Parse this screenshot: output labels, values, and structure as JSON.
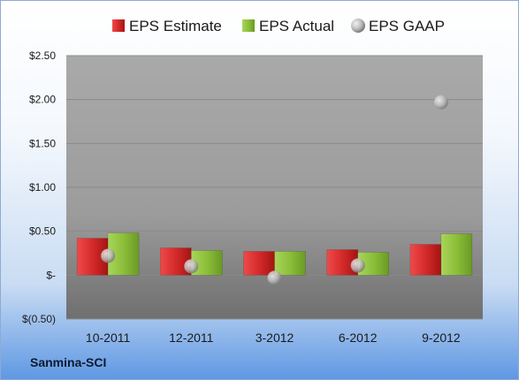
{
  "company_label": "Sanmina-SCI",
  "colors": {
    "estimate": "#d42a2a",
    "actual": "#8cbf3a",
    "gaap": "#b8b8b8"
  },
  "chart_data": {
    "type": "bar",
    "categories": [
      "10-2011",
      "12-2011",
      "3-2012",
      "6-2012",
      "9-2012"
    ],
    "series": [
      {
        "name": "EPS Estimate",
        "kind": "bar",
        "values": [
          0.42,
          0.31,
          0.27,
          0.29,
          0.35
        ]
      },
      {
        "name": "EPS Actual",
        "kind": "bar",
        "values": [
          0.48,
          0.28,
          0.27,
          0.26,
          0.47
        ]
      },
      {
        "name": "EPS GAAP",
        "kind": "marker",
        "values": [
          0.22,
          0.1,
          -0.03,
          0.11,
          1.97
        ]
      }
    ],
    "ylim": [
      -0.5,
      2.5
    ],
    "yticks": [
      -0.5,
      0,
      0.5,
      1.0,
      1.5,
      2.0,
      2.5
    ],
    "ytick_labels": [
      "$(0.50)",
      "$-",
      "$0.50",
      "$1.00",
      "$1.50",
      "$2.00",
      "$2.50"
    ],
    "legend_position": "top",
    "grid": true
  }
}
